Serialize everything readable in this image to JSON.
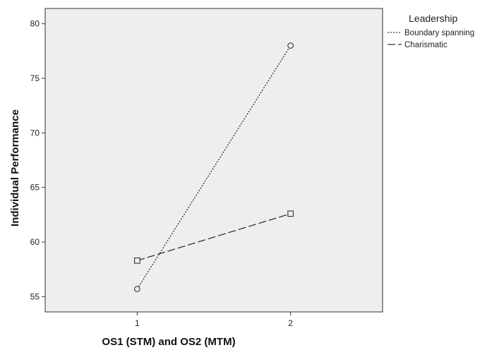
{
  "chart_data": {
    "type": "line",
    "title": "",
    "xlabel": "OS1 (STM) and OS2 (MTM)",
    "ylabel": "Individual Performance",
    "categories": [
      "1",
      "2"
    ],
    "x": [
      1,
      2
    ],
    "xlim": [
      0.4,
      2.6
    ],
    "ylim": [
      53.6,
      81.4
    ],
    "yticks": [
      55,
      60,
      65,
      70,
      75,
      80
    ],
    "grid": false,
    "plot_background": "#eeeeee",
    "legend": {
      "title": "Leadership",
      "placement": "right"
    },
    "series": [
      {
        "name": "Boundary spanning",
        "values": [
          55.7,
          78.0
        ],
        "line_style": "dotted",
        "marker": "circle",
        "color": "#333333"
      },
      {
        "name": "Charismatic",
        "values": [
          58.3,
          62.6
        ],
        "line_style": "dashed",
        "marker": "square",
        "color": "#333333"
      }
    ]
  }
}
